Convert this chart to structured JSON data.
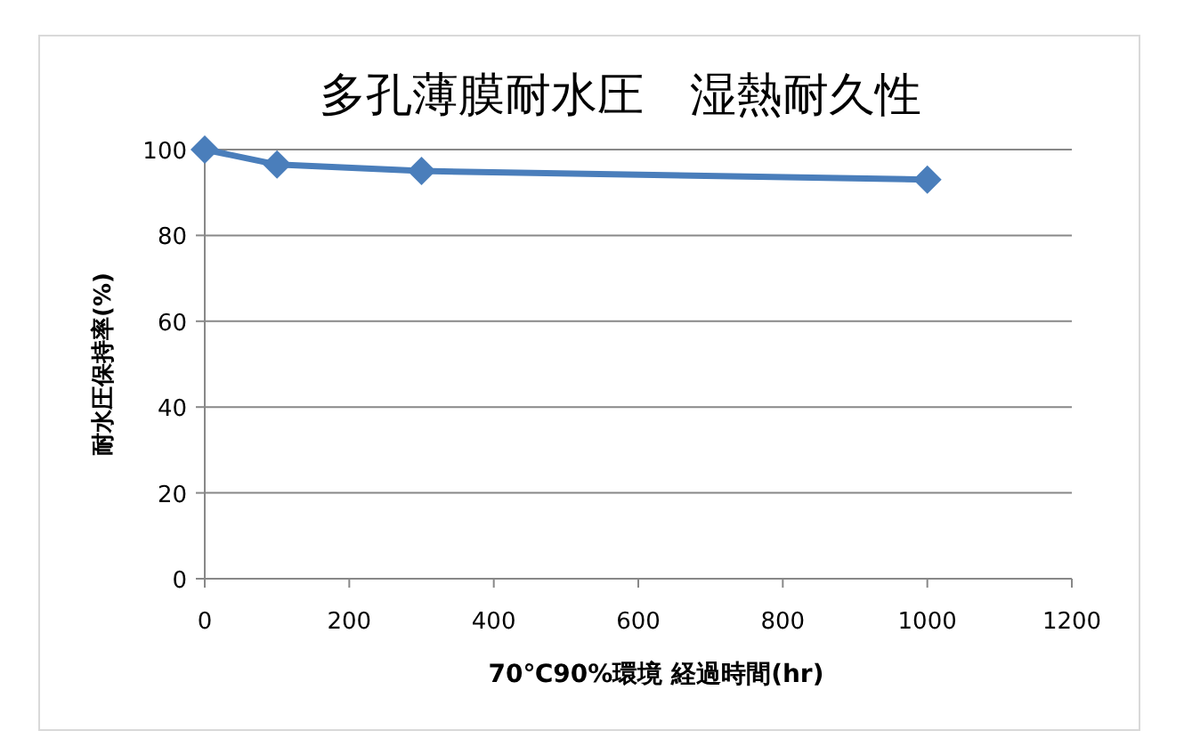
{
  "chart_data": {
    "type": "line",
    "title": "多孔薄膜耐水圧　湿熱耐久性",
    "xlabel": "70℃90%環境 経過時間(hr)",
    "ylabel": "耐水圧保持率(%)",
    "x": [
      0,
      100,
      300,
      1000
    ],
    "series": [
      {
        "color": "#4a7ebb",
        "values": [
          100,
          96.5,
          95,
          93
        ]
      }
    ],
    "xlim": [
      0,
      1200
    ],
    "xticks": [
      0,
      200,
      400,
      600,
      800,
      1000,
      1200
    ],
    "ylim": [
      0,
      100
    ],
    "yticks": [
      0,
      20,
      40,
      60,
      80,
      100
    ],
    "grid": "y",
    "marker": "diamond",
    "line_style": "solid"
  }
}
